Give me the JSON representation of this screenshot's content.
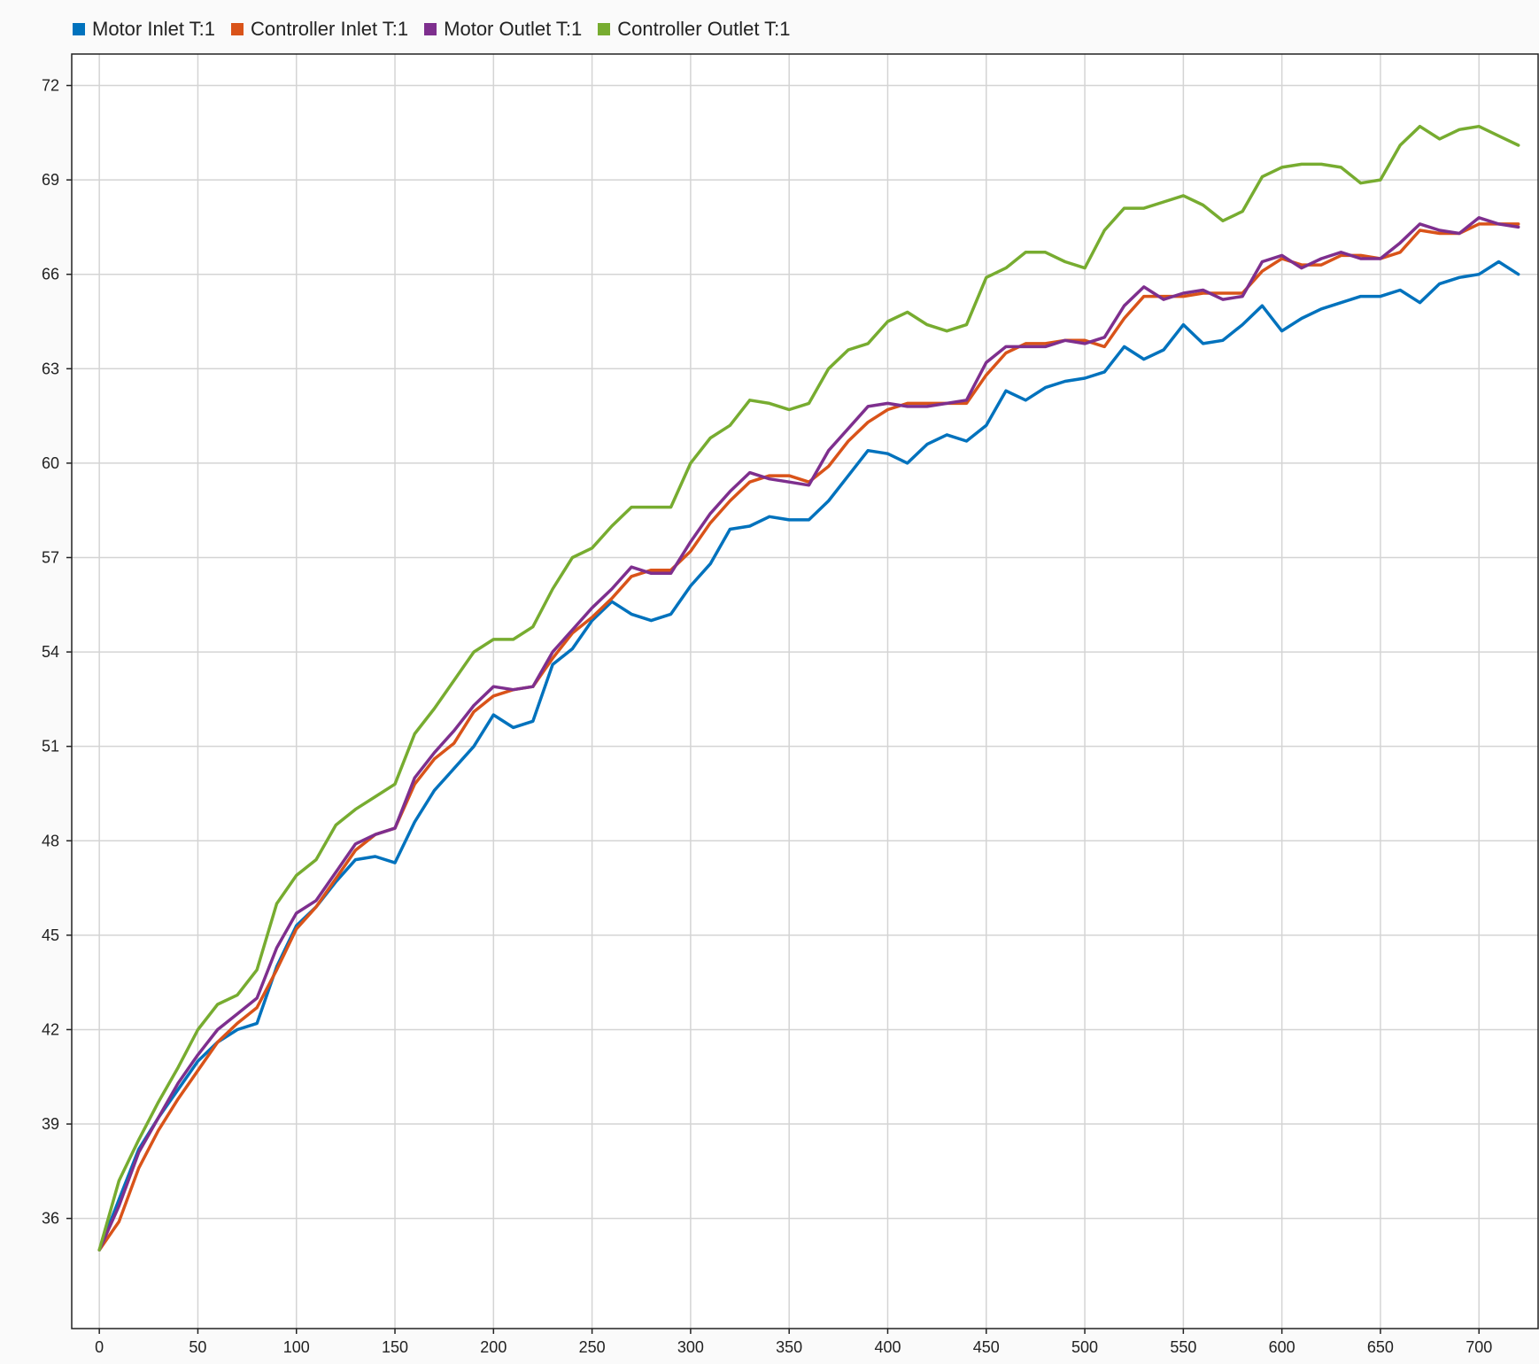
{
  "chart_data": {
    "type": "line",
    "title": "",
    "xlabel": "",
    "ylabel": "",
    "xlim": [
      -14,
      730
    ],
    "ylim": [
      32.5,
      73
    ],
    "x_ticks": [
      0,
      50,
      100,
      150,
      200,
      250,
      300,
      350,
      400,
      450,
      500,
      550,
      600,
      650,
      700
    ],
    "y_ticks": [
      36,
      39,
      42,
      45,
      48,
      51,
      54,
      57,
      60,
      63,
      66,
      69,
      72
    ],
    "grid": true,
    "legend_position": "top-left",
    "x": [
      0,
      10,
      20,
      30,
      40,
      50,
      60,
      70,
      80,
      90,
      100,
      110,
      120,
      130,
      140,
      150,
      160,
      170,
      180,
      190,
      200,
      210,
      220,
      230,
      240,
      250,
      260,
      270,
      280,
      290,
      300,
      310,
      320,
      330,
      340,
      350,
      360,
      370,
      380,
      390,
      400,
      410,
      420,
      430,
      440,
      450,
      460,
      470,
      480,
      490,
      500,
      510,
      520,
      530,
      540,
      550,
      560,
      570,
      580,
      590,
      600,
      610,
      620,
      630,
      640,
      650,
      660,
      670,
      680,
      690,
      700,
      710,
      720
    ],
    "series": [
      {
        "name": "Motor Inlet T:1",
        "color": "#0072bd",
        "values": [
          35.0,
          36.6,
          38.2,
          39.2,
          40.1,
          41.0,
          41.6,
          42.0,
          42.2,
          44.0,
          45.3,
          45.9,
          46.7,
          47.4,
          47.5,
          47.3,
          48.6,
          49.6,
          50.3,
          51.0,
          52.0,
          51.6,
          51.8,
          53.6,
          54.1,
          55.0,
          55.6,
          55.2,
          55.0,
          55.2,
          56.1,
          56.8,
          57.9,
          58.0,
          58.3,
          58.2,
          58.2,
          58.8,
          59.6,
          60.4,
          60.3,
          60.0,
          60.6,
          60.9,
          60.7,
          61.2,
          62.3,
          62.0,
          62.4,
          62.6,
          62.7,
          62.9,
          63.7,
          63.3,
          63.6,
          64.4,
          63.8,
          63.9,
          64.4,
          65.0,
          64.2,
          64.6,
          64.9,
          65.1,
          65.3,
          65.3,
          65.5,
          65.1,
          65.7,
          65.9,
          66.0,
          66.4,
          66.0
        ]
      },
      {
        "name": "Controller Inlet T:1",
        "color": "#d95319",
        "values": [
          35.0,
          35.9,
          37.6,
          38.8,
          39.8,
          40.7,
          41.6,
          42.2,
          42.7,
          43.9,
          45.2,
          45.9,
          46.8,
          47.7,
          48.2,
          48.4,
          49.8,
          50.6,
          51.1,
          52.1,
          52.6,
          52.8,
          52.9,
          53.8,
          54.6,
          55.1,
          55.7,
          56.4,
          56.6,
          56.6,
          57.2,
          58.1,
          58.8,
          59.4,
          59.6,
          59.6,
          59.4,
          59.9,
          60.7,
          61.3,
          61.7,
          61.9,
          61.9,
          61.9,
          61.9,
          62.8,
          63.5,
          63.8,
          63.8,
          63.9,
          63.9,
          63.7,
          64.6,
          65.3,
          65.3,
          65.3,
          65.4,
          65.4,
          65.4,
          66.1,
          66.5,
          66.3,
          66.3,
          66.6,
          66.6,
          66.5,
          66.7,
          67.4,
          67.3,
          67.3,
          67.6,
          67.6,
          67.6
        ]
      },
      {
        "name": "Motor Outlet T:1",
        "color": "#7e2f8e",
        "values": [
          35.0,
          36.4,
          38.1,
          39.2,
          40.3,
          41.2,
          42.0,
          42.5,
          43.0,
          44.6,
          45.7,
          46.1,
          47.0,
          47.9,
          48.2,
          48.4,
          50.0,
          50.8,
          51.5,
          52.3,
          52.9,
          52.8,
          52.9,
          54.0,
          54.7,
          55.4,
          56.0,
          56.7,
          56.5,
          56.5,
          57.5,
          58.4,
          59.1,
          59.7,
          59.5,
          59.4,
          59.3,
          60.4,
          61.1,
          61.8,
          61.9,
          61.8,
          61.8,
          61.9,
          62.0,
          63.2,
          63.7,
          63.7,
          63.7,
          63.9,
          63.8,
          64.0,
          65.0,
          65.6,
          65.2,
          65.4,
          65.5,
          65.2,
          65.3,
          66.4,
          66.6,
          66.2,
          66.5,
          66.7,
          66.5,
          66.5,
          67.0,
          67.6,
          67.4,
          67.3,
          67.8,
          67.6,
          67.5
        ]
      },
      {
        "name": "Controller Outlet T:1",
        "color": "#77ac30",
        "values": [
          35.0,
          37.2,
          38.5,
          39.7,
          40.8,
          42.0,
          42.8,
          43.1,
          43.9,
          46.0,
          46.9,
          47.4,
          48.5,
          49.0,
          49.4,
          49.8,
          51.4,
          52.2,
          53.1,
          54.0,
          54.4,
          54.4,
          54.8,
          56.0,
          57.0,
          57.3,
          58.0,
          58.6,
          58.6,
          58.6,
          60.0,
          60.8,
          61.2,
          62.0,
          61.9,
          61.7,
          61.9,
          63.0,
          63.6,
          63.8,
          64.5,
          64.8,
          64.4,
          64.2,
          64.4,
          65.9,
          66.2,
          66.7,
          66.7,
          66.4,
          66.2,
          67.4,
          68.1,
          68.1,
          68.3,
          68.5,
          68.2,
          67.7,
          68.0,
          69.1,
          69.4,
          69.5,
          69.5,
          69.4,
          68.9,
          69.0,
          70.1,
          70.7,
          70.3,
          70.6,
          70.7,
          70.4,
          70.1
        ]
      }
    ]
  }
}
